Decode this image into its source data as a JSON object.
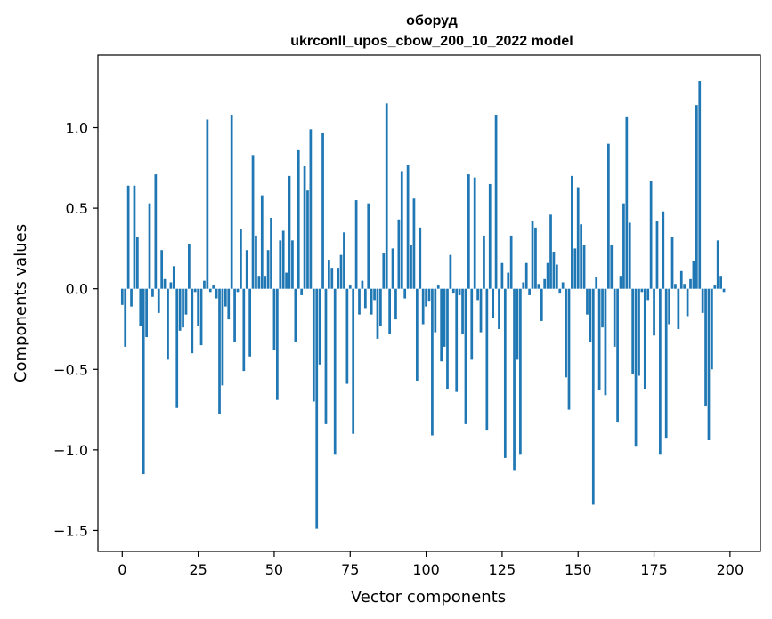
{
  "chart_data": {
    "type": "bar",
    "title": "оборуд",
    "subtitle": "ukrconll_upos_cbow_200_10_2022 model",
    "xlabel": "Vector components",
    "ylabel": "Components values",
    "xlim": [
      -8,
      210
    ],
    "ylim": [
      -1.63,
      1.45
    ],
    "xticks": [
      0,
      25,
      50,
      75,
      100,
      125,
      150,
      175,
      200
    ],
    "yticks": [
      -1.5,
      -1.0,
      -0.5,
      0.0,
      0.5,
      1.0
    ],
    "ytick_labels": [
      "−1.5",
      "−1.0",
      "−0.5",
      "0.0",
      "0.5",
      "1.0"
    ],
    "bar_color": "#1f77b4",
    "grid": false,
    "values": [
      -0.1,
      -0.36,
      0.64,
      -0.11,
      0.64,
      0.32,
      -0.23,
      -1.15,
      -0.3,
      0.53,
      -0.05,
      0.71,
      -0.15,
      0.24,
      0.06,
      -0.44,
      0.04,
      0.14,
      -0.74,
      -0.26,
      -0.24,
      -0.16,
      0.28,
      -0.4,
      -0.02,
      -0.23,
      -0.35,
      0.05,
      1.05,
      -0.02,
      0.02,
      -0.06,
      -0.78,
      -0.6,
      -0.11,
      -0.19,
      1.08,
      -0.33,
      -0.02,
      0.37,
      -0.51,
      0.24,
      -0.42,
      0.83,
      0.33,
      0.08,
      0.58,
      0.08,
      0.24,
      0.44,
      -0.38,
      -0.69,
      0.3,
      0.36,
      0.1,
      0.7,
      0.3,
      -0.33,
      0.86,
      -0.04,
      0.76,
      0.61,
      0.99,
      -0.7,
      -1.49,
      -0.47,
      0.97,
      -0.84,
      0.18,
      0.13,
      -1.03,
      0.13,
      0.21,
      0.35,
      -0.59,
      0.02,
      -0.9,
      0.55,
      -0.16,
      0.05,
      -0.12,
      0.53,
      -0.16,
      -0.07,
      -0.31,
      -0.23,
      0.22,
      1.15,
      -0.28,
      0.25,
      -0.19,
      0.43,
      0.73,
      -0.06,
      0.77,
      0.27,
      0.56,
      -0.57,
      0.38,
      -0.22,
      -0.11,
      -0.08,
      -0.91,
      -0.27,
      0.02,
      -0.45,
      -0.36,
      -0.62,
      0.21,
      -0.03,
      -0.64,
      -0.04,
      -0.28,
      -0.84,
      0.71,
      -0.44,
      0.69,
      -0.07,
      -0.27,
      0.33,
      -0.88,
      0.65,
      -0.18,
      1.08,
      -0.25,
      0.16,
      -1.05,
      0.1,
      0.33,
      -1.13,
      -0.44,
      -1.03,
      0.04,
      0.16,
      -0.04,
      0.42,
      0.38,
      0.03,
      -0.2,
      0.06,
      0.16,
      0.46,
      0.23,
      0.15,
      -0.03,
      0.04,
      -0.55,
      -0.75,
      0.7,
      0.25,
      0.63,
      0.4,
      0.27,
      -0.16,
      -0.33,
      -1.34,
      0.07,
      -0.63,
      -0.24,
      -0.66,
      0.9,
      0.27,
      -0.36,
      -0.83,
      0.08,
      0.53,
      1.07,
      0.41,
      -0.53,
      -0.98,
      -0.54,
      -0.02,
      -0.62,
      -0.07,
      0.67,
      -0.29,
      0.42,
      -1.03,
      0.48,
      -0.93,
      -0.22,
      0.32,
      0.03,
      -0.25,
      0.11,
      0.03,
      -0.17,
      0.06,
      0.17,
      1.14,
      1.29,
      -0.15,
      -0.73,
      -0.94,
      -0.5,
      0.02,
      0.3,
      0.08,
      -0.02
    ]
  }
}
